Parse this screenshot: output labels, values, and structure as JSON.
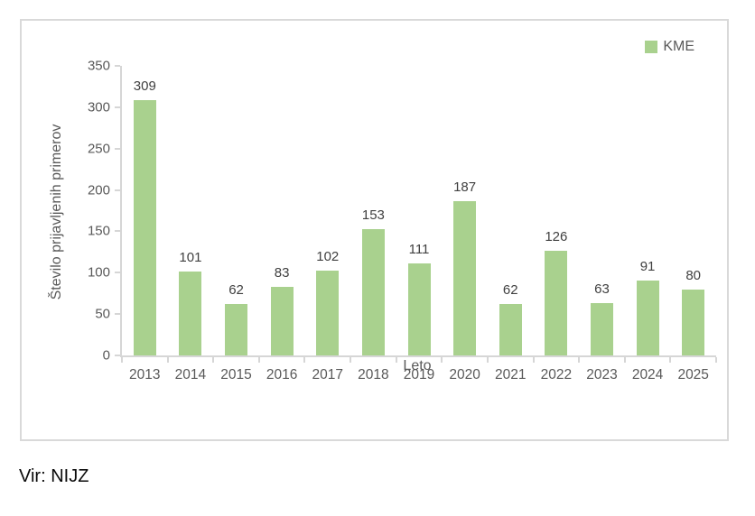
{
  "chart_data": {
    "type": "bar",
    "title": "",
    "categories": [
      "2013",
      "2014",
      "2015",
      "2016",
      "2017",
      "2018",
      "2019",
      "2020",
      "2021",
      "2022",
      "2023",
      "2024",
      "2025"
    ],
    "series": [
      {
        "name": "KME",
        "values": [
          309,
          101,
          62,
          83,
          102,
          153,
          111,
          187,
          62,
          126,
          63,
          91,
          80
        ]
      }
    ],
    "xlabel": "Leto",
    "ylabel": "Število prijavljenih primerov",
    "ylim": [
      0,
      350
    ],
    "yticks": [
      0,
      50,
      100,
      150,
      200,
      250,
      300,
      350
    ],
    "grid": false,
    "data_labels": true,
    "legend_position": "top-right",
    "bar_color": "#a9d18e"
  },
  "legend": {
    "label": "KME",
    "swatch_color": "#a9d18e"
  },
  "source_note": "Vir: NIJZ",
  "colors": {
    "bar": "#a9d18e",
    "axis_text": "#595959",
    "data_label": "#404040",
    "axis_line": "#d6d6d6",
    "frame_border": "#d9d9d9"
  }
}
